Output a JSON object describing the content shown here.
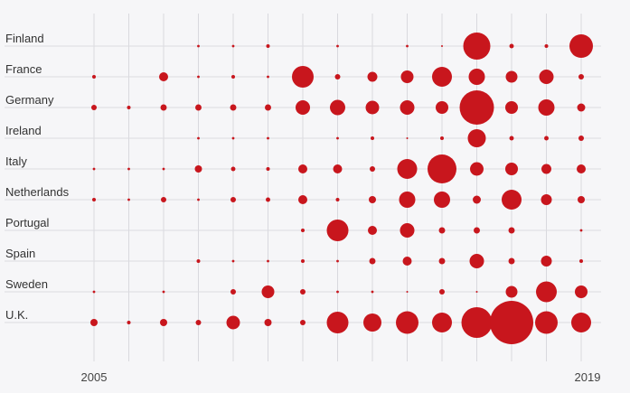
{
  "chart_data": {
    "type": "scatter",
    "subtype": "bubble-matrix",
    "title": "",
    "xlabel": "",
    "ylabel": "",
    "x": [
      2005,
      2006,
      2007,
      2008,
      2009,
      2010,
      2011,
      2012,
      2013,
      2014,
      2015,
      2016,
      2017,
      2018,
      2019
    ],
    "x_tick_labels": [
      "2005",
      "2019"
    ],
    "bubble_color": "#c8161d",
    "grid": true,
    "size_unit": "relative bubble area",
    "series": [
      {
        "name": "Finland",
        "values": [
          0,
          0,
          0,
          2,
          2,
          4,
          0,
          2,
          0,
          2,
          1,
          225,
          6,
          4,
          169
        ]
      },
      {
        "name": "France",
        "values": [
          4,
          0,
          25,
          2,
          4,
          2,
          144,
          9,
          30,
          49,
          121,
          81,
          42,
          64,
          9
        ]
      },
      {
        "name": "Germany",
        "values": [
          9,
          4,
          12,
          12,
          12,
          12,
          64,
          72,
          56,
          64,
          49,
          361,
          49,
          81,
          20
        ]
      },
      {
        "name": "Ireland",
        "values": [
          0,
          0,
          0,
          2,
          2,
          2,
          0,
          2,
          4,
          1,
          4,
          100,
          6,
          6,
          9
        ]
      },
      {
        "name": "Italy",
        "values": [
          2,
          2,
          2,
          16,
          6,
          4,
          25,
          25,
          9,
          121,
          256,
          56,
          49,
          30,
          25
        ]
      },
      {
        "name": "Netherlands",
        "values": [
          4,
          2,
          9,
          2,
          9,
          6,
          25,
          4,
          16,
          81,
          81,
          20,
          121,
          36,
          16
        ]
      },
      {
        "name": "Portugal",
        "values": [
          0,
          0,
          0,
          0,
          0,
          0,
          4,
          144,
          25,
          64,
          12,
          12,
          12,
          0,
          2
        ]
      },
      {
        "name": "Spain",
        "values": [
          0,
          0,
          0,
          4,
          2,
          2,
          4,
          2,
          12,
          25,
          12,
          64,
          12,
          36,
          4
        ]
      },
      {
        "name": "Sweden",
        "values": [
          2,
          0,
          2,
          0,
          9,
          49,
          9,
          2,
          2,
          1,
          9,
          1,
          42,
          132,
          49
        ]
      },
      {
        "name": "U.K.",
        "values": [
          16,
          4,
          16,
          9,
          56,
          16,
          9,
          144,
          100,
          156,
          121,
          289,
          576,
          156,
          121
        ]
      }
    ]
  }
}
